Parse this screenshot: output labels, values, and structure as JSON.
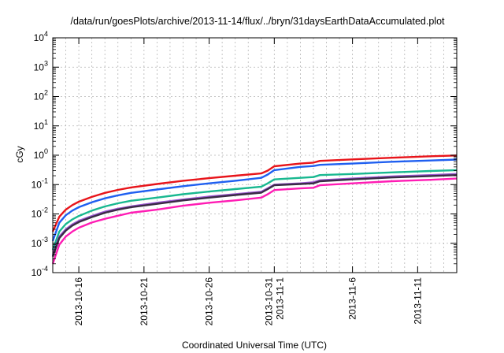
{
  "chart_data": {
    "type": "line",
    "title": "/data/run/goesPlots/archive/2013-11-14/flux/../bryn/31daysEarthDataAccumulated.plot",
    "xlabel": "Coordinated Universal Time (UTC)",
    "ylabel": "cGy",
    "y_scale": "log",
    "ylim": [
      0.0001,
      10000
    ],
    "xlim": [
      "2013-10-14",
      "2013-11-14"
    ],
    "grid": true,
    "y_ticks": [
      {
        "base": "10",
        "exp": "-4"
      },
      {
        "base": "10",
        "exp": "-3"
      },
      {
        "base": "10",
        "exp": "-2"
      },
      {
        "base": "10",
        "exp": "-1"
      },
      {
        "base": "10",
        "exp": "0"
      },
      {
        "base": "10",
        "exp": "1"
      },
      {
        "base": "10",
        "exp": "2"
      },
      {
        "base": "10",
        "exp": "3"
      },
      {
        "base": "10",
        "exp": "4"
      }
    ],
    "x_ticks": [
      {
        "date": "2013-10-16",
        "lines": [
          "2013-10-16"
        ]
      },
      {
        "date": "2013-10-21",
        "lines": [
          "2013-10-21"
        ]
      },
      {
        "date": "2013-10-26",
        "lines": [
          "2013-10-26"
        ]
      },
      {
        "date": "2013-10-31",
        "lines": [
          "2013-10-31",
          "2013-11-1"
        ]
      },
      {
        "date": "2013-11-06",
        "lines": [
          "2013-11-6"
        ]
      },
      {
        "date": "2013-11-11",
        "lines": [
          "2013-11-11"
        ]
      }
    ],
    "x": [
      "2013-10-14",
      "2013-10-14T12:00",
      "2013-10-15",
      "2013-10-15T12:00",
      "2013-10-16",
      "2013-10-17",
      "2013-10-18",
      "2013-10-19",
      "2013-10-20",
      "2013-10-22",
      "2013-10-24",
      "2013-10-26",
      "2013-10-28",
      "2013-10-30",
      "2013-10-30T12:00",
      "2013-10-31",
      "2013-11-02",
      "2013-11-03",
      "2013-11-03T12:00",
      "2013-11-06",
      "2013-11-09",
      "2013-11-12",
      "2013-11-14"
    ],
    "series": [
      {
        "color": "#e8141a",
        "values": [
          0.0025,
          0.008,
          0.014,
          0.02,
          0.026,
          0.038,
          0.052,
          0.066,
          0.08,
          0.105,
          0.135,
          0.165,
          0.2,
          0.24,
          0.3,
          0.42,
          0.52,
          0.56,
          0.64,
          0.72,
          0.82,
          0.92,
          0.98
        ]
      },
      {
        "color": "#1f5ff0",
        "values": [
          0.0012,
          0.005,
          0.009,
          0.013,
          0.017,
          0.025,
          0.034,
          0.043,
          0.052,
          0.068,
          0.088,
          0.11,
          0.135,
          0.17,
          0.22,
          0.31,
          0.4,
          0.43,
          0.47,
          0.52,
          0.6,
          0.66,
          0.71
        ]
      },
      {
        "color": "#18b890",
        "values": [
          0.0006,
          0.0025,
          0.0045,
          0.0065,
          0.0085,
          0.013,
          0.018,
          0.023,
          0.028,
          0.036,
          0.047,
          0.058,
          0.07,
          0.085,
          0.11,
          0.15,
          0.17,
          0.18,
          0.21,
          0.23,
          0.26,
          0.29,
          0.31
        ]
      },
      {
        "color": "#9b57d3",
        "values": [
          0.0004,
          0.0017,
          0.003,
          0.0044,
          0.0058,
          0.0085,
          0.012,
          0.015,
          0.018,
          0.024,
          0.031,
          0.039,
          0.047,
          0.057,
          0.075,
          0.1,
          0.11,
          0.12,
          0.14,
          0.16,
          0.19,
          0.21,
          0.23
        ]
      },
      {
        "color": "#3a2a45",
        "values": [
          0.00035,
          0.0015,
          0.0027,
          0.004,
          0.0053,
          0.0078,
          0.011,
          0.014,
          0.017,
          0.022,
          0.029,
          0.036,
          0.044,
          0.053,
          0.07,
          0.095,
          0.105,
          0.11,
          0.13,
          0.15,
          0.175,
          0.195,
          0.21
        ]
      },
      {
        "color": "#ff1cb4",
        "values": [
          0.0002,
          0.0009,
          0.0017,
          0.0025,
          0.0034,
          0.0051,
          0.0068,
          0.0087,
          0.011,
          0.014,
          0.019,
          0.024,
          0.029,
          0.036,
          0.047,
          0.065,
          0.074,
          0.078,
          0.095,
          0.11,
          0.13,
          0.145,
          0.16
        ]
      }
    ]
  }
}
